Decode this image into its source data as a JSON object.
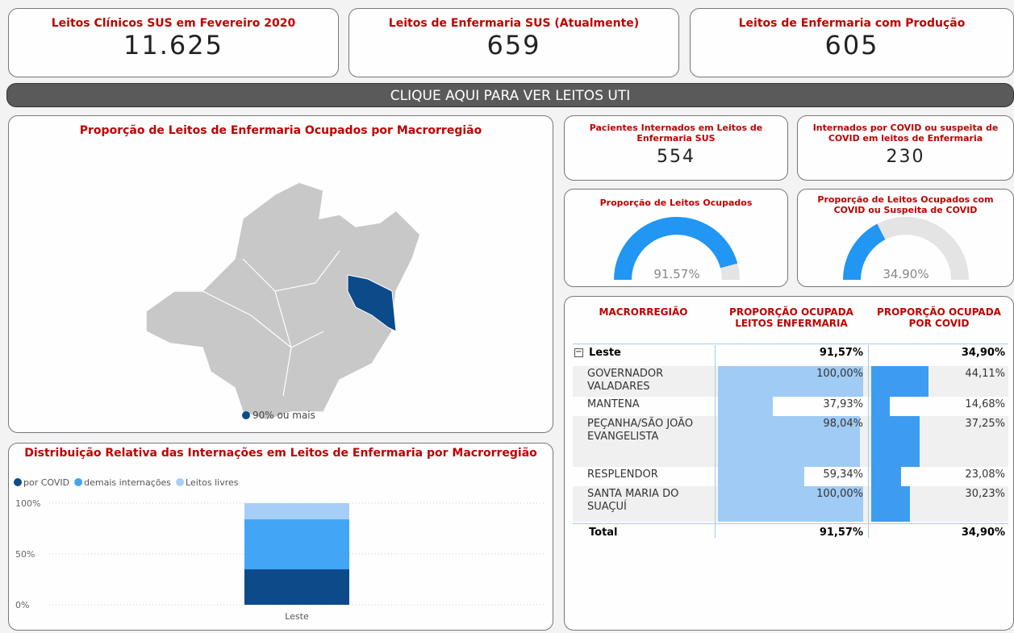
{
  "cards": [
    {
      "title": "Leitos Clínicos SUS em Fevereiro 2020",
      "value": "11.625"
    },
    {
      "title": "Leitos de Enfermaria SUS (Atualmente)",
      "value": "659"
    },
    {
      "title": "Leitos de Enfermaria com Produção",
      "value": "605"
    }
  ],
  "button": "CLIQUE AQUI PARA VER LEITOS UTI",
  "map": {
    "title": "Proporção de Leitos de Enfermaria Ocupados por Macrorregião",
    "legend": "90% ou mais",
    "legend_color": "#0d4a8a"
  },
  "indicators": [
    {
      "title": "Pacientes Internados em Leitos de Enfermaria SUS",
      "value": "554"
    },
    {
      "title": "Internados por COVID ou suspeita de COVID em leitos de Enfermaria",
      "value": "230"
    }
  ],
  "gauges": [
    {
      "type": "gauge",
      "title": "Proporção de Leitos Ocupados",
      "value": 91.57,
      "value_label": "91.57%",
      "ylim": [
        0,
        100
      ],
      "color": "#2196f3"
    },
    {
      "type": "gauge",
      "title": "Proporção de Leitos Ocupados com COVID ou Suspeita de COVID",
      "value": 34.9,
      "value_label": "34.90%",
      "ylim": [
        0,
        100
      ],
      "color": "#2196f3"
    }
  ],
  "table": {
    "headers": [
      "MACRORREGIÃO",
      "PROPORÇÃO OCUPADA LEITOS ENFERMARIA",
      "PROPORÇÃO OCUPADA POR COVID"
    ],
    "group": {
      "name": "Leste",
      "cells": [
        "91,57%",
        "34,90%"
      ]
    },
    "rows": [
      {
        "name": "GOVERNADOR VALADARES",
        "values": [
          100,
          44.11
        ],
        "value_labels": [
          "100,00%",
          "44,11%"
        ]
      },
      {
        "name": "MANTENA",
        "values": [
          37.93,
          14.68
        ],
        "value_labels": [
          "37,93%",
          "14,68%"
        ]
      },
      {
        "name": "PEÇANHA/SÃO JOÃO EVANGELISTA",
        "values": [
          98.04,
          37.25
        ],
        "value_labels": [
          "98,04%",
          "37,25%"
        ]
      },
      {
        "name": "RESPLENDOR",
        "values": [
          59.34,
          23.08
        ],
        "value_labels": [
          "59,34%",
          "23,08%"
        ]
      },
      {
        "name": "SANTA MARIA DO SUAÇUÍ",
        "values": [
          100,
          30.23
        ],
        "value_labels": [
          "100,00%",
          "30,23%"
        ]
      }
    ],
    "total": {
      "name": "Total",
      "cells": [
        "91,57%",
        "34,90%"
      ]
    },
    "bar_colors": [
      "#9fcbf5",
      "#3d9cf0"
    ]
  },
  "chart_data": {
    "type": "bar",
    "stacked": true,
    "title": "Distribuição Relativa das Internações em Leitos de Enfermaria por Macrorregião",
    "categories": [
      "Leste"
    ],
    "series": [
      {
        "name": "por COVID",
        "color": "#0d4a8a",
        "values": [
          34.9
        ]
      },
      {
        "name": "demais internações",
        "color": "#42a5f5",
        "values": [
          49.2
        ]
      },
      {
        "name": "Leitos livres",
        "color": "#a6cef7",
        "values": [
          15.9
        ]
      }
    ],
    "ylim": [
      0,
      100
    ],
    "yticks": [
      {
        "value": 0,
        "label": "0%"
      },
      {
        "value": 50,
        "label": "50%"
      },
      {
        "value": 100,
        "label": "100%"
      }
    ],
    "grid": true
  }
}
